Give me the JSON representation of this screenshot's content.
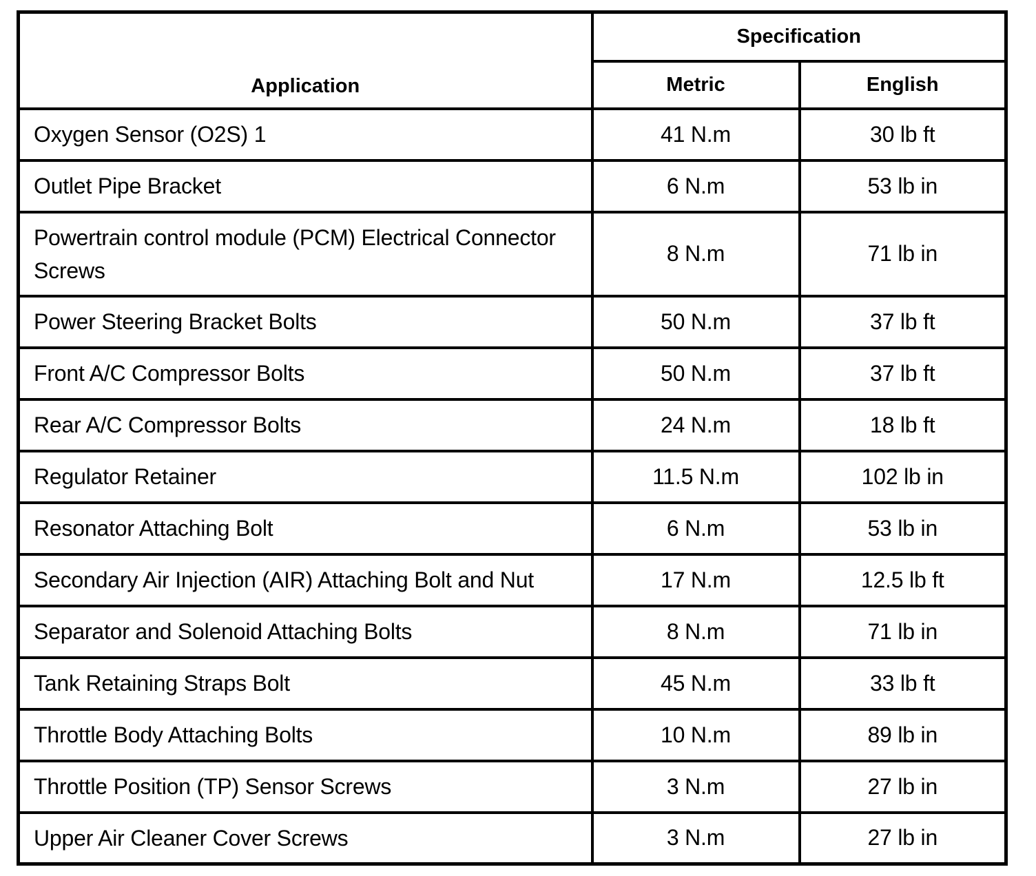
{
  "table": {
    "header": {
      "application_label": "Application",
      "specification_label": "Specification",
      "metric_label": "Metric",
      "english_label": "English"
    },
    "rows": [
      {
        "application": "Oxygen Sensor (O2S) 1",
        "metric": "41 N.m",
        "english": "30 lb ft"
      },
      {
        "application": "Outlet Pipe Bracket",
        "metric": "6 N.m",
        "english": "53 lb in"
      },
      {
        "application": "Powertrain control module (PCM) Electrical Connector Screws",
        "metric": "8 N.m",
        "english": "71 lb in"
      },
      {
        "application": "Power Steering Bracket Bolts",
        "metric": "50 N.m",
        "english": "37 lb ft"
      },
      {
        "application": "Front A/C Compressor Bolts",
        "metric": "50 N.m",
        "english": "37 lb ft"
      },
      {
        "application": "Rear A/C Compressor Bolts",
        "metric": "24 N.m",
        "english": "18 lb ft"
      },
      {
        "application": "Regulator Retainer",
        "metric": "11.5 N.m",
        "english": "102 lb in"
      },
      {
        "application": "Resonator Attaching Bolt",
        "metric": "6 N.m",
        "english": "53 lb in"
      },
      {
        "application": "Secondary Air Injection (AIR) Attaching Bolt and Nut",
        "metric": "17 N.m",
        "english": "12.5 lb ft"
      },
      {
        "application": "Separator and Solenoid Attaching Bolts",
        "metric": "8 N.m",
        "english": "71 lb in"
      },
      {
        "application": "Tank Retaining Straps Bolt",
        "metric": "45 N.m",
        "english": "33 lb ft"
      },
      {
        "application": "Throttle Body Attaching Bolts",
        "metric": "10 N.m",
        "english": "89 lb in"
      },
      {
        "application": "Throttle Position (TP) Sensor Screws",
        "metric": "3 N.m",
        "english": "27 lb in"
      },
      {
        "application": "Upper Air Cleaner Cover Screws",
        "metric": "3 N.m",
        "english": "27 lb in"
      }
    ],
    "colors": {
      "border": "#000000",
      "background": "#ffffff",
      "text": "#000000"
    }
  }
}
